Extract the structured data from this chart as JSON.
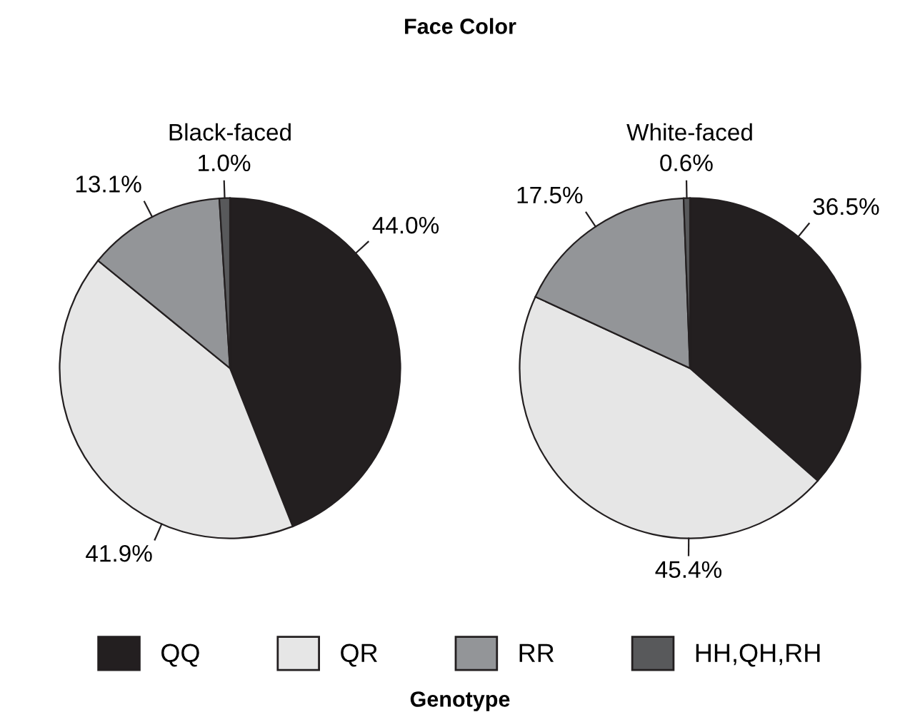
{
  "chart_data": [
    {
      "type": "pie",
      "title": "Black-faced",
      "annotations": [
        "Face Color"
      ],
      "categories": [
        "QQ",
        "QR",
        "RR",
        "HH,QH,RH"
      ],
      "values": [
        44.0,
        41.9,
        13.1,
        1.0
      ],
      "colors": [
        "#231f20",
        "#e6e6e6",
        "#939598",
        "#58595b"
      ],
      "value_labels": [
        "44.0%",
        "41.9%",
        "13.1%",
        "1.0%"
      ],
      "legend": "bottom",
      "legend_title": "Genotype"
    },
    {
      "type": "pie",
      "title": "White-faced",
      "values": [
        36.5,
        45.4,
        17.5,
        0.6
      ],
      "colors": [
        "#231f20",
        "#e6e6e6",
        "#939598",
        "#58595b"
      ],
      "value_labels": [
        "36.5%",
        "45.4%",
        "17.5%",
        "0.6%"
      ]
    }
  ]
}
